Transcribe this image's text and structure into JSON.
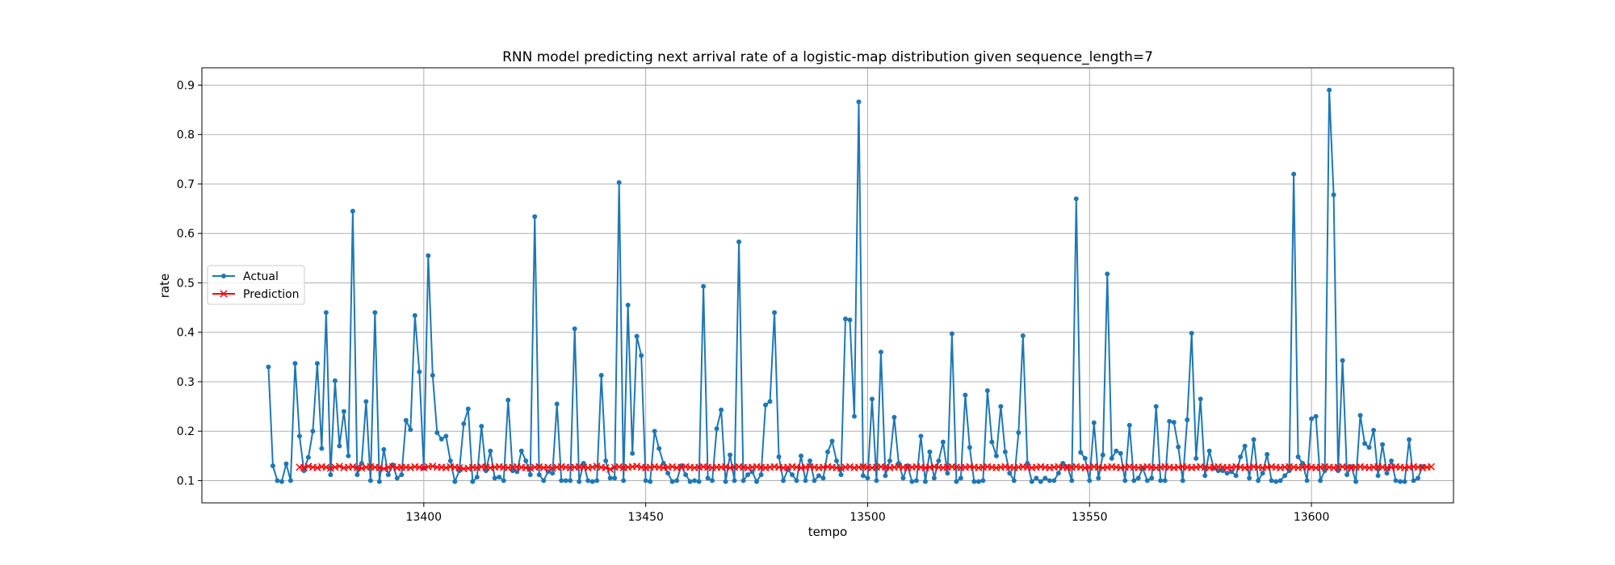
{
  "chart_data": {
    "type": "line",
    "title": "RNN model predicting next arrival rate of a logistic-map distribution given sequence_length=7",
    "xlabel": "tempo",
    "ylabel": "rate",
    "xlim": [
      13350,
      13632
    ],
    "ylim": [
      0.055,
      0.935
    ],
    "xticks": [
      13400,
      13450,
      13500,
      13550,
      13600
    ],
    "yticks": [
      0.1,
      0.2,
      0.3,
      0.4,
      0.5,
      0.6,
      0.7,
      0.8,
      0.9
    ],
    "grid": true,
    "legend": {
      "placement": "center-left"
    },
    "series": [
      {
        "name": "Actual",
        "color": "#1f77b4",
        "marker": "dot",
        "x_start": 13365,
        "x_step": 1,
        "values": [
          0.33,
          0.13,
          0.1,
          0.098,
          0.134,
          0.1,
          0.337,
          0.19,
          0.12,
          0.147,
          0.2,
          0.337,
          0.165,
          0.44,
          0.112,
          0.302,
          0.17,
          0.24,
          0.15,
          0.645,
          0.112,
          0.135,
          0.26,
          0.1,
          0.44,
          0.098,
          0.163,
          0.112,
          0.132,
          0.105,
          0.112,
          0.222,
          0.203,
          0.434,
          0.32,
          0.125,
          0.555,
          0.313,
          0.197,
          0.184,
          0.19,
          0.14,
          0.098,
          0.12,
          0.215,
          0.245,
          0.098,
          0.107,
          0.21,
          0.12,
          0.16,
          0.105,
          0.107,
          0.1,
          0.263,
          0.12,
          0.118,
          0.16,
          0.14,
          0.112,
          0.634,
          0.112,
          0.1,
          0.118,
          0.115,
          0.255,
          0.1,
          0.1,
          0.1,
          0.407,
          0.098,
          0.135,
          0.1,
          0.098,
          0.1,
          0.313,
          0.14,
          0.105,
          0.105,
          0.703,
          0.1,
          0.455,
          0.155,
          0.392,
          0.353,
          0.1,
          0.098,
          0.2,
          0.165,
          0.135,
          0.115,
          0.098,
          0.1,
          0.13,
          0.112,
          0.098,
          0.1,
          0.098,
          0.493,
          0.105,
          0.1,
          0.205,
          0.243,
          0.098,
          0.152,
          0.1,
          0.583,
          0.1,
          0.112,
          0.118,
          0.098,
          0.112,
          0.253,
          0.26,
          0.44,
          0.148,
          0.1,
          0.122,
          0.112,
          0.1,
          0.15,
          0.1,
          0.14,
          0.1,
          0.11,
          0.105,
          0.158,
          0.18,
          0.14,
          0.112,
          0.427,
          0.425,
          0.23,
          0.866,
          0.11,
          0.105,
          0.265,
          0.1,
          0.36,
          0.11,
          0.14,
          0.228,
          0.135,
          0.105,
          0.13,
          0.098,
          0.1,
          0.19,
          0.098,
          0.158,
          0.105,
          0.14,
          0.178,
          0.115,
          0.397,
          0.098,
          0.105,
          0.273,
          0.167,
          0.098,
          0.098,
          0.1,
          0.282,
          0.178,
          0.15,
          0.25,
          0.158,
          0.115,
          0.1,
          0.197,
          0.393,
          0.135,
          0.098,
          0.105,
          0.098,
          0.105,
          0.1,
          0.1,
          0.115,
          0.135,
          0.128,
          0.1,
          0.67,
          0.157,
          0.145,
          0.1,
          0.217,
          0.105,
          0.152,
          0.518,
          0.145,
          0.16,
          0.155,
          0.1,
          0.212,
          0.1,
          0.105,
          0.125,
          0.1,
          0.105,
          0.25,
          0.1,
          0.1,
          0.22,
          0.218,
          0.168,
          0.1,
          0.223,
          0.398,
          0.145,
          0.265,
          0.11,
          0.16,
          0.125,
          0.12,
          0.12,
          0.115,
          0.118,
          0.11,
          0.148,
          0.17,
          0.105,
          0.183,
          0.1,
          0.115,
          0.153,
          0.1,
          0.098,
          0.1,
          0.11,
          0.12,
          0.72,
          0.148,
          0.135,
          0.1,
          0.225,
          0.23,
          0.1,
          0.12,
          0.89,
          0.678,
          0.12,
          0.343,
          0.112,
          0.128,
          0.098,
          0.232,
          0.175,
          0.167,
          0.202,
          0.11,
          0.173,
          0.115,
          0.14,
          0.1,
          0.098,
          0.098,
          0.183,
          0.1,
          0.105,
          0.128
        ]
      },
      {
        "name": "Prediction",
        "color": "#ff0000",
        "marker": "x",
        "x_start": 13372,
        "x_step": 1,
        "values": [
          0.127,
          0.126,
          0.129,
          0.127,
          0.126,
          0.128,
          0.127,
          0.125,
          0.127,
          0.129,
          0.126,
          0.127,
          0.128,
          0.126,
          0.125,
          0.127,
          0.128,
          0.127,
          0.126,
          0.124,
          0.127,
          0.128,
          0.126,
          0.127,
          0.127,
          0.126,
          0.128,
          0.127,
          0.126,
          0.128,
          0.129,
          0.127,
          0.127,
          0.126,
          0.128,
          0.127,
          0.126,
          0.124,
          0.125,
          0.127,
          0.126,
          0.128,
          0.127,
          0.126,
          0.127,
          0.128,
          0.127,
          0.126,
          0.127,
          0.128,
          0.127,
          0.126,
          0.125,
          0.127,
          0.128,
          0.126,
          0.127,
          0.125,
          0.127,
          0.128,
          0.127,
          0.126,
          0.127,
          0.128,
          0.127,
          0.126,
          0.127,
          0.129,
          0.127,
          0.126,
          0.123,
          0.127,
          0.128,
          0.126,
          0.127,
          0.128,
          0.129,
          0.127,
          0.126,
          0.127,
          0.128,
          0.127,
          0.126,
          0.127,
          0.128,
          0.126,
          0.127,
          0.128,
          0.127,
          0.126,
          0.127,
          0.128,
          0.127,
          0.126,
          0.127,
          0.127,
          0.128,
          0.126,
          0.127,
          0.128,
          0.127,
          0.126,
          0.127,
          0.128,
          0.127,
          0.126,
          0.127,
          0.128,
          0.127,
          0.126,
          0.127,
          0.128,
          0.127,
          0.126,
          0.127,
          0.128,
          0.127,
          0.126,
          0.127,
          0.128,
          0.127,
          0.126,
          0.125,
          0.127,
          0.128,
          0.126,
          0.127,
          0.128,
          0.127,
          0.126,
          0.127,
          0.128,
          0.127,
          0.126,
          0.127,
          0.128,
          0.127,
          0.126,
          0.127,
          0.128,
          0.127,
          0.126,
          0.127,
          0.128,
          0.127,
          0.126,
          0.127,
          0.128,
          0.127,
          0.126,
          0.127,
          0.128,
          0.127,
          0.126,
          0.127,
          0.128,
          0.127,
          0.126,
          0.127,
          0.128,
          0.127,
          0.126,
          0.127,
          0.128,
          0.127,
          0.126,
          0.127,
          0.128,
          0.127,
          0.126,
          0.127,
          0.128,
          0.127,
          0.126,
          0.127,
          0.128,
          0.127,
          0.126,
          0.127,
          0.128,
          0.127,
          0.126,
          0.127,
          0.128,
          0.127,
          0.126,
          0.127,
          0.128,
          0.127,
          0.126,
          0.127,
          0.128,
          0.127,
          0.126,
          0.127,
          0.128,
          0.127,
          0.126,
          0.127,
          0.128,
          0.127,
          0.126,
          0.127,
          0.128,
          0.127,
          0.126,
          0.127,
          0.128,
          0.127,
          0.126,
          0.127,
          0.128,
          0.127,
          0.126,
          0.127,
          0.128,
          0.127,
          0.126,
          0.127,
          0.128,
          0.127,
          0.126,
          0.127,
          0.128,
          0.127,
          0.126,
          0.127,
          0.128,
          0.127,
          0.126,
          0.127,
          0.128,
          0.127,
          0.126,
          0.127,
          0.128,
          0.127,
          0.126,
          0.127,
          0.128,
          0.127,
          0.126,
          0.127,
          0.128,
          0.127,
          0.126,
          0.127,
          0.128,
          0.127,
          0.126,
          0.127,
          0.128,
          0.127,
          0.126,
          0.127,
          0.128
        ]
      }
    ]
  }
}
